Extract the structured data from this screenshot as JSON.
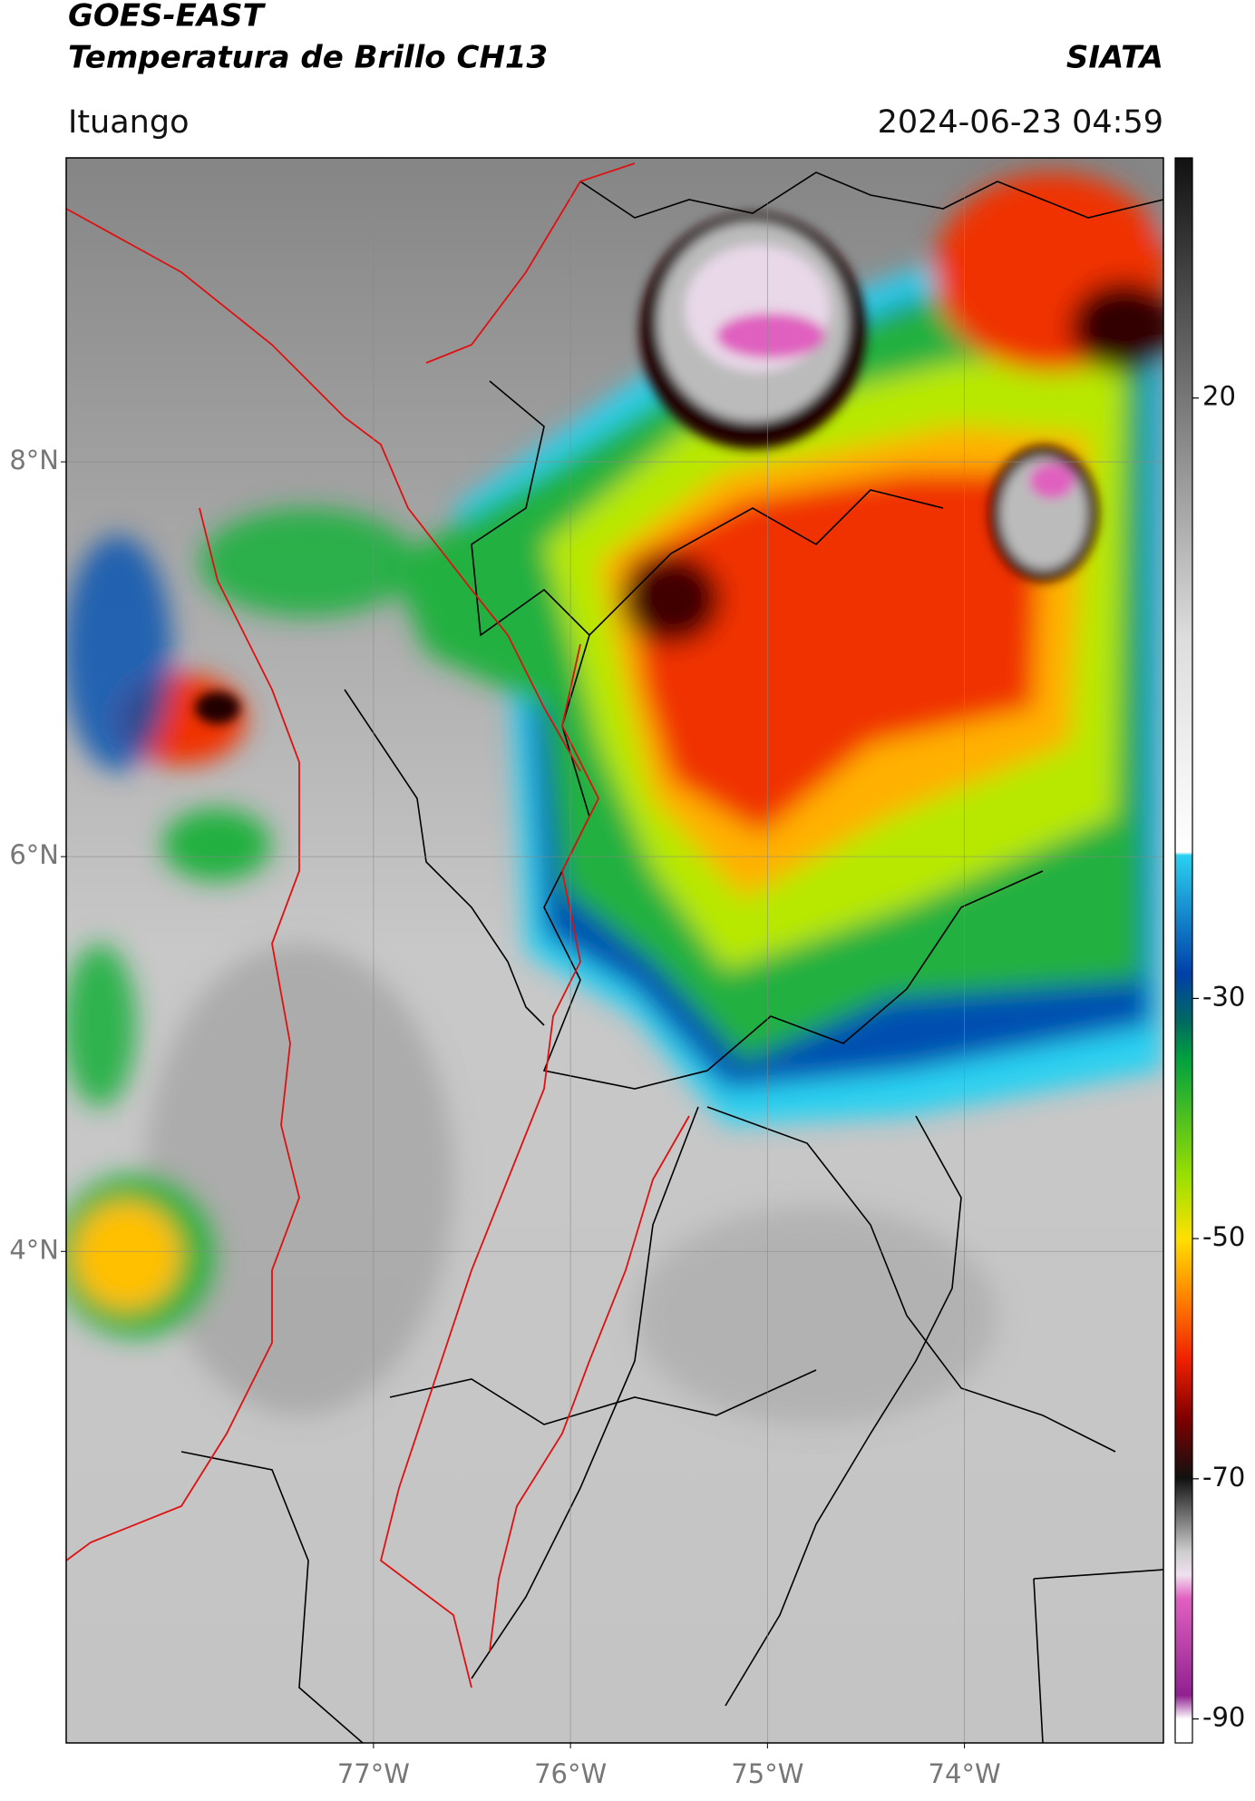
{
  "chart_data": {
    "type": "map",
    "title": "GOES-EAST",
    "subtitle": "Temperatura de Brillo CH13",
    "source": "SIATA",
    "location": "Ituango",
    "datetime": "2024-06-23 04:59",
    "xlim": [
      -78.56,
      -72.99
    ],
    "ylim": [
      1.51,
      9.54
    ],
    "xticks": [
      {
        "value": -77,
        "label": "77°W"
      },
      {
        "value": -76,
        "label": "76°W"
      },
      {
        "value": -75,
        "label": "75°W"
      },
      {
        "value": -74,
        "label": "74°W"
      }
    ],
    "yticks": [
      {
        "value": 8,
        "label": "8°N"
      },
      {
        "value": 6,
        "label": "6°N"
      },
      {
        "value": 4,
        "label": "4°N"
      }
    ],
    "grid": true,
    "colorbar": {
      "lim": [
        -92,
        40
      ],
      "ticks": [
        20,
        -30,
        -50,
        -70,
        -90
      ]
    }
  }
}
